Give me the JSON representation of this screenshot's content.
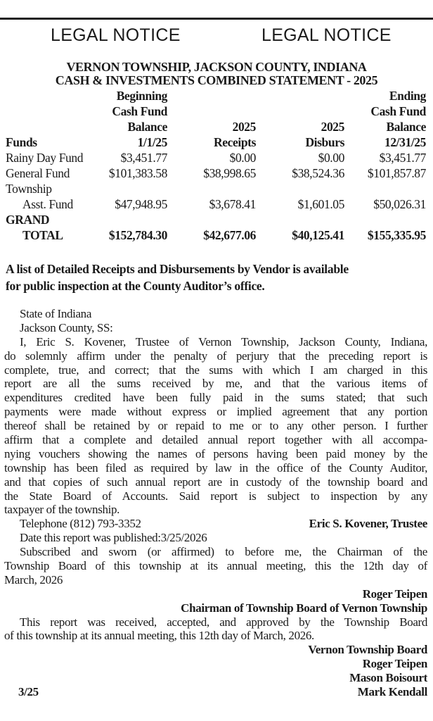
{
  "header": {
    "left": "LEGAL NOTICE",
    "right": "LEGAL NOTICE"
  },
  "title": [
    "VERNON TOWNSHIP, JACKSON COUNTY, INDIANA",
    "CASH & INVESTMENTS COMBINED STATEMENT - 2025"
  ],
  "table": {
    "headers": [
      [
        "",
        "Beginning",
        "",
        "",
        "Ending"
      ],
      [
        "",
        "Cash Fund",
        "",
        "",
        "Cash Fund"
      ],
      [
        "",
        "Balance",
        "2025",
        "2025",
        "Balance"
      ],
      [
        "Funds",
        "1/1/25",
        "Receipts",
        "Disburs",
        "12/31/25"
      ]
    ],
    "rows": [
      [
        "Rainy Day Fund",
        "$3,451.77",
        "$0.00",
        "$0.00",
        "$3,451.77"
      ],
      [
        "General Fund",
        "$101,383.58",
        "$38,998.65",
        "$38,524.36",
        "$101,857.87"
      ],
      [
        "Township",
        "",
        "",
        "",
        ""
      ],
      [
        "Asst. Fund",
        "$47,948.95",
        "$3,678.41",
        "$1,601.05",
        "$50,026.31"
      ]
    ],
    "total": [
      [
        "GRAND",
        "",
        "",
        "",
        ""
      ],
      [
        "TOTAL",
        "$152,784.30",
        "$42,677.06",
        "$40,125.41",
        "$155,335.95"
      ]
    ]
  },
  "availability": [
    "A list of Detailed Receipts and Disbursements by Vendor is available",
    "for public inspection at the County Auditor’s office."
  ],
  "state": "State of Indiana",
  "county": "Jackson County, SS:",
  "affirmation": [
    "I, Eric S. Kovener, Trustee of Vernon Township, Jackson County, Indiana,",
    "do solemnly affirm under the penalty of perjury that the preceding report is",
    "complete, true, and correct; that the sums with which I am charged in this",
    "report are all the sums received by me, and that the various items of",
    "expenditures credited have been fully paid in the sums stated; that such",
    "payments were made without express or implied agreement that any portion",
    "thereof shall be retained by or repaid to me or to any other person. I further",
    "affirm that a complete and detailed annual report together with all accompa-",
    "nying vouchers showing the names of persons having been paid money by the",
    "township has been filed as required by law in the office of the County Auditor,",
    "and that copies of such annual report are in custody of the township board and",
    "the State Board of Accounts. Said report is subject to inspection by any",
    "taxpayer of the township."
  ],
  "telephone": "Telephone (812) 793-3352",
  "trustee_sig": "Eric S. Kovener, Trustee",
  "published": "Date this report was published:3/25/2026",
  "subscribed": [
    "Subscribed and sworn (or affirmed) to before me, the Chairman of the",
    "Township Board of this township at its annual meeting, this the 12th day of",
    "March, 2026"
  ],
  "chair_name": "Roger Teipen",
  "chair_title": "Chairman of Township Board of Vernon Township",
  "approval": [
    "This report was received, accepted, and approved by the Township Board",
    "of this township at its annual meeting, this 12th day of March, 2026."
  ],
  "board": [
    "Vernon Township Board",
    "Roger Teipen",
    "Mason Boisourt",
    "Mark Kendall"
  ],
  "run_date": "3/25"
}
